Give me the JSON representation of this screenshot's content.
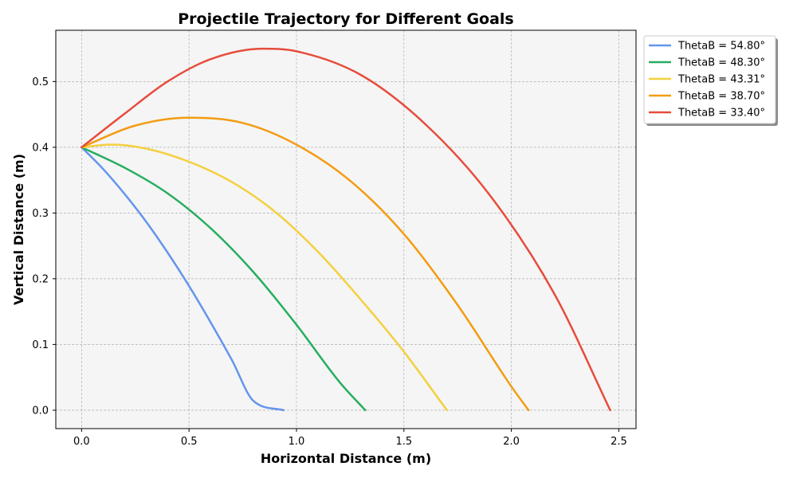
{
  "chart_data": {
    "type": "line",
    "title": "Projectile Trajectory for Different Goals",
    "xlabel": "Horizontal Distance (m)",
    "ylabel": "Vertical Distance (m)",
    "xlim": [
      -0.12,
      2.58
    ],
    "ylim": [
      -0.028,
      0.578
    ],
    "xticks": [
      0.0,
      0.5,
      1.0,
      1.5,
      2.0,
      2.5
    ],
    "xtick_labels": [
      "0.0",
      "0.5",
      "1.0",
      "1.5",
      "2.0",
      "2.5"
    ],
    "yticks": [
      0.0,
      0.1,
      0.2,
      0.3,
      0.4,
      0.5
    ],
    "ytick_labels": [
      "0.0",
      "0.1",
      "0.2",
      "0.3",
      "0.4",
      "0.5"
    ],
    "grid": true,
    "legend_position": "outside-top-right",
    "series": [
      {
        "name": "ThetaB = 54.80°",
        "color": "#6495ED",
        "x": [
          0,
          0.1,
          0.2,
          0.3,
          0.4,
          0.5,
          0.6,
          0.7,
          0.8,
          0.94
        ],
        "y": [
          0.4,
          0.367,
          0.329,
          0.287,
          0.24,
          0.189,
          0.134,
          0.076,
          0.014,
          0.0
        ]
      },
      {
        "name": "ThetaB = 48.30°",
        "color": "#27AE60",
        "x": [
          0,
          0.2,
          0.4,
          0.6,
          0.8,
          1.0,
          1.2,
          1.32
        ],
        "y": [
          0.4,
          0.369,
          0.33,
          0.277,
          0.21,
          0.13,
          0.043,
          0.0
        ]
      },
      {
        "name": "ThetaB = 43.31°",
        "color": "#F4D03F",
        "x": [
          0,
          0.14,
          0.3,
          0.5,
          0.7,
          0.9,
          1.1,
          1.3,
          1.5,
          1.7
        ],
        "y": [
          0.4,
          0.404,
          0.398,
          0.378,
          0.347,
          0.302,
          0.241,
          0.168,
          0.089,
          0.0
        ]
      },
      {
        "name": "ThetaB = 38.70°",
        "color": "#F39C12",
        "x": [
          0,
          0.25,
          0.5,
          0.75,
          1.0,
          1.25,
          1.5,
          1.75,
          2.0,
          2.08
        ],
        "y": [
          0.4,
          0.433,
          0.445,
          0.437,
          0.404,
          0.349,
          0.268,
          0.16,
          0.036,
          0.0
        ]
      },
      {
        "name": "ThetaB = 33.40°",
        "color": "#E74C3C",
        "x": [
          0,
          0.2,
          0.4,
          0.6,
          0.84,
          1.0,
          1.3,
          1.6,
          1.9,
          2.2,
          2.46
        ],
        "y": [
          0.4,
          0.451,
          0.5,
          0.534,
          0.55,
          0.546,
          0.51,
          0.435,
          0.327,
          0.177,
          0.0
        ]
      }
    ]
  }
}
